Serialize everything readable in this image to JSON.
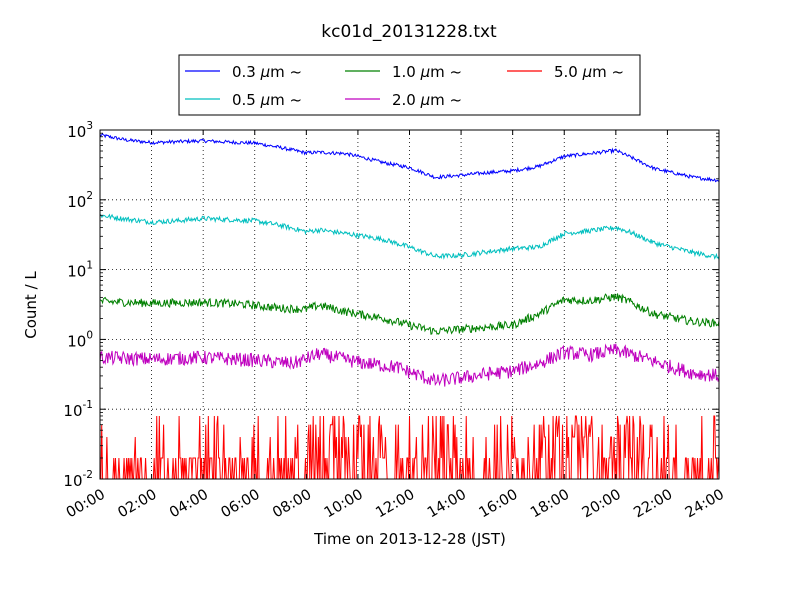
{
  "chart_data": {
    "type": "line",
    "title": "kc01d_20131228.txt",
    "xlabel": "Time on 2013-12-28 (JST)",
    "ylabel": "Count / L",
    "y_scale": "log",
    "ylim": [
      0.01,
      1000
    ],
    "xlim": [
      "00:00",
      "24:00"
    ],
    "grid": true,
    "legend": {
      "placement": "top-center",
      "columns": 3
    },
    "x_ticks": [
      "00:00",
      "02:00",
      "04:00",
      "06:00",
      "08:00",
      "10:00",
      "12:00",
      "14:00",
      "16:00",
      "18:00",
      "20:00",
      "22:00",
      "24:00"
    ],
    "y_ticks": [
      {
        "base": "10",
        "exp": "-2"
      },
      {
        "base": "10",
        "exp": "-1"
      },
      {
        "base": "10",
        "exp": "0"
      },
      {
        "base": "10",
        "exp": "1"
      },
      {
        "base": "10",
        "exp": "2"
      },
      {
        "base": "10",
        "exp": "3"
      }
    ],
    "series": [
      {
        "name": "0.3 μm ~",
        "legend_label": "0.3",
        "color": "#0000ff",
        "noise": 0.025,
        "anchors": [
          [
            "00:00",
            850
          ],
          [
            "01:00",
            720
          ],
          [
            "02:00",
            660
          ],
          [
            "03:00",
            680
          ],
          [
            "04:00",
            700
          ],
          [
            "05:00",
            670
          ],
          [
            "06:00",
            650
          ],
          [
            "07:00",
            560
          ],
          [
            "08:00",
            470
          ],
          [
            "08:30",
            480
          ],
          [
            "09:30",
            460
          ],
          [
            "10:00",
            420
          ],
          [
            "11:00",
            340
          ],
          [
            "12:00",
            290
          ],
          [
            "13:00",
            210
          ],
          [
            "14:00",
            225
          ],
          [
            "15:00",
            245
          ],
          [
            "16:00",
            260
          ],
          [
            "17:00",
            300
          ],
          [
            "18:00",
            420
          ],
          [
            "19:00",
            460
          ],
          [
            "20:00",
            510
          ],
          [
            "20:30",
            420
          ],
          [
            "21:30",
            280
          ],
          [
            "23:00",
            210
          ],
          [
            "24:00",
            190
          ]
        ]
      },
      {
        "name": "0.5 μm ~",
        "legend_label": "0.5",
        "color": "#00bfbf",
        "noise": 0.035,
        "anchors": [
          [
            "00:00",
            60
          ],
          [
            "01:00",
            53
          ],
          [
            "02:00",
            48
          ],
          [
            "03:00",
            50
          ],
          [
            "04:00",
            54
          ],
          [
            "05:00",
            52
          ],
          [
            "06:00",
            50
          ],
          [
            "07:00",
            43
          ],
          [
            "08:00",
            35
          ],
          [
            "08:30",
            37
          ],
          [
            "09:30",
            33
          ],
          [
            "10:00",
            31
          ],
          [
            "11:00",
            27
          ],
          [
            "12:00",
            21
          ],
          [
            "13:00",
            15.5
          ],
          [
            "14:00",
            16
          ],
          [
            "15:00",
            18
          ],
          [
            "16:00",
            20
          ],
          [
            "17:00",
            21
          ],
          [
            "18:00",
            33
          ],
          [
            "19:00",
            36
          ],
          [
            "20:00",
            40
          ],
          [
            "20:30",
            35
          ],
          [
            "21:30",
            24
          ],
          [
            "23:00",
            17.5
          ],
          [
            "24:00",
            15
          ]
        ]
      },
      {
        "name": "1.0 μm ~",
        "legend_label": "1.0",
        "color": "#008000",
        "noise": 0.06,
        "anchors": [
          [
            "00:00",
            3.5
          ],
          [
            "02:00",
            3.3
          ],
          [
            "04:00",
            3.4
          ],
          [
            "05:30",
            3.2
          ],
          [
            "07:00",
            2.8
          ],
          [
            "08:00",
            2.7
          ],
          [
            "08:30",
            3.1
          ],
          [
            "09:30",
            2.5
          ],
          [
            "11:00",
            2.0
          ],
          [
            "12:00",
            1.6
          ],
          [
            "13:00",
            1.3
          ],
          [
            "14:00",
            1.4
          ],
          [
            "15:00",
            1.5
          ],
          [
            "16:00",
            1.6
          ],
          [
            "17:00",
            2.3
          ],
          [
            "18:00",
            3.7
          ],
          [
            "19:00",
            3.6
          ],
          [
            "20:00",
            4.1
          ],
          [
            "20:30",
            3.5
          ],
          [
            "21:30",
            2.3
          ],
          [
            "23:00",
            1.8
          ],
          [
            "24:00",
            1.7
          ]
        ]
      },
      {
        "name": "2.0 μm ~",
        "legend_label": "2.0",
        "color": "#bf00bf",
        "noise": 0.1,
        "anchors": [
          [
            "00:00",
            0.55
          ],
          [
            "02:00",
            0.52
          ],
          [
            "04:00",
            0.55
          ],
          [
            "06:00",
            0.5
          ],
          [
            "07:30",
            0.45
          ],
          [
            "08:30",
            0.62
          ],
          [
            "10:00",
            0.47
          ],
          [
            "11:30",
            0.4
          ],
          [
            "13:00",
            0.25
          ],
          [
            "14:00",
            0.28
          ],
          [
            "15:00",
            0.32
          ],
          [
            "16:00",
            0.35
          ],
          [
            "17:00",
            0.45
          ],
          [
            "18:00",
            0.65
          ],
          [
            "19:00",
            0.6
          ],
          [
            "20:00",
            0.7
          ],
          [
            "21:00",
            0.55
          ],
          [
            "22:00",
            0.42
          ],
          [
            "23:00",
            0.33
          ],
          [
            "24:00",
            0.3
          ]
        ]
      },
      {
        "name": "5.0 μm ~",
        "legend_label": "5.0",
        "color": "#ff0000",
        "spiky": true,
        "floor": 0.01,
        "levels": [
          0.02,
          0.04,
          0.06,
          0.08
        ]
      }
    ]
  }
}
